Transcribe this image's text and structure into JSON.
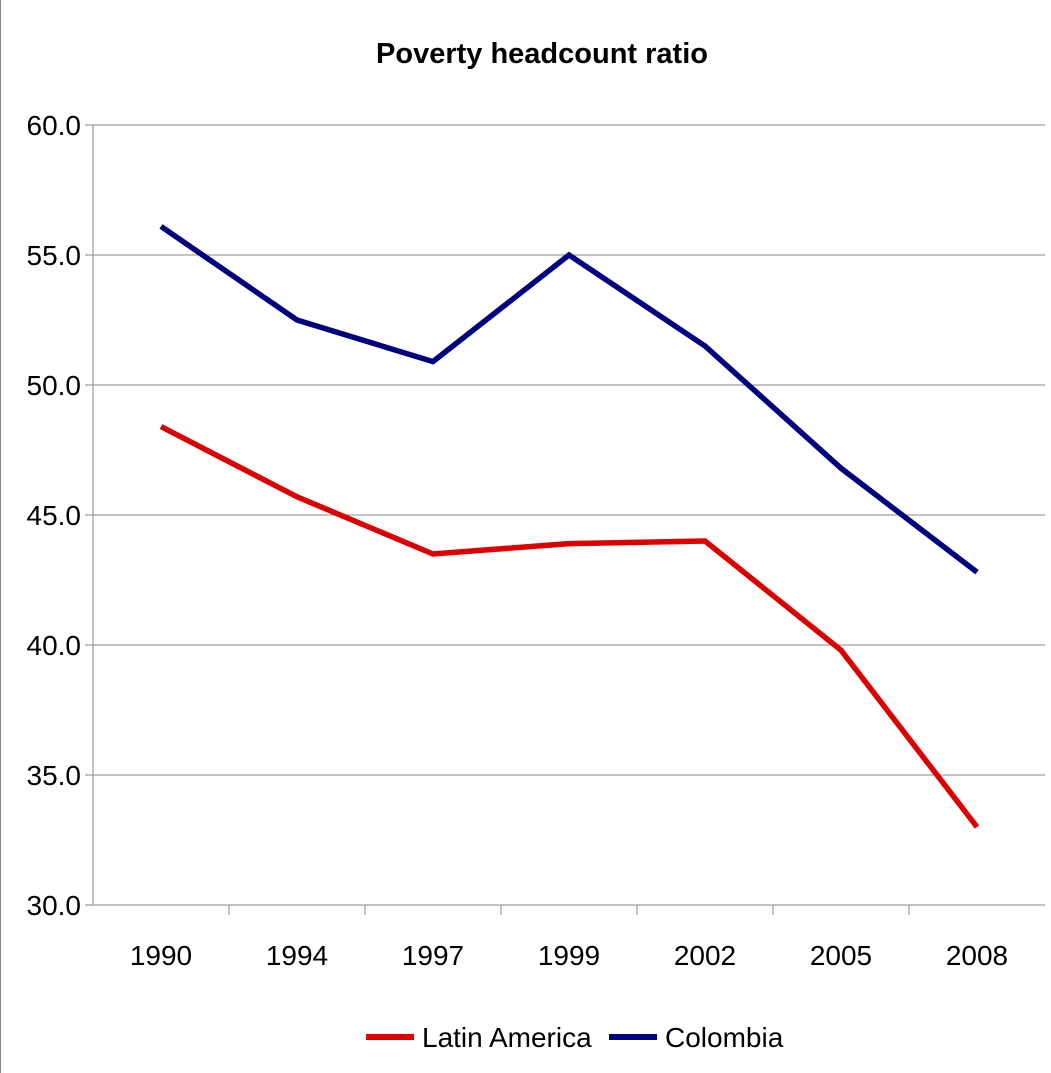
{
  "chart_data": {
    "type": "line",
    "title": "Poverty headcount ratio",
    "xlabel": "",
    "ylabel": "",
    "categories": [
      "1990",
      "1994",
      "1997",
      "1999",
      "2002",
      "2005",
      "2008"
    ],
    "y_ticks": [
      "30.0",
      "35.0",
      "40.0",
      "45.0",
      "50.0",
      "55.0",
      "60.0"
    ],
    "ylim": [
      30,
      60
    ],
    "grid": true,
    "legend_position": "bottom",
    "series": [
      {
        "name": "Latin America",
        "color": "#dd0000",
        "values": [
          48.4,
          45.7,
          43.5,
          43.9,
          44.0,
          39.8,
          33.0
        ]
      },
      {
        "name": "Colombia",
        "color": "#000080",
        "values": [
          56.1,
          52.5,
          50.9,
          55.0,
          51.5,
          46.8,
          42.8
        ]
      }
    ]
  }
}
